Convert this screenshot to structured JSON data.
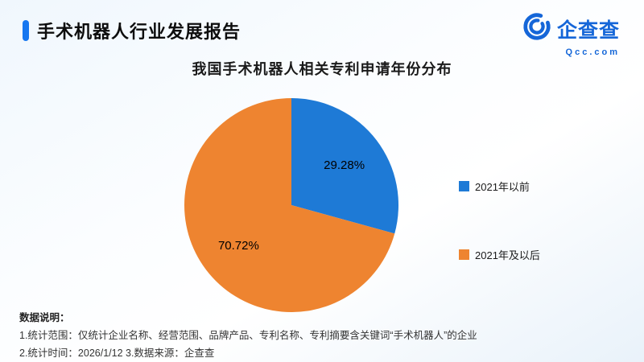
{
  "header": {
    "title": "手术机器人行业发展报告",
    "accent_color": "#1677f0"
  },
  "logo": {
    "name": "企查查",
    "domain": "Qcc.com",
    "color": "#1566d8"
  },
  "chart_data": {
    "type": "pie",
    "title": "我国手术机器人相关专利申请年份分布",
    "start_angle_deg": 0,
    "legend_position": "right",
    "slices": [
      {
        "label": "2021年以前",
        "value": 29.28,
        "display": "29.28%",
        "color": "#1e7ad6"
      },
      {
        "label": "2021年及以后",
        "value": 70.72,
        "display": "70.72%",
        "color": "#ee8430"
      }
    ]
  },
  "footer": {
    "heading": "数据说明：",
    "line1": "1.统计范围：仅统计企业名称、经营范围、品牌产品、专利名称、专利摘要含关键词“手术机器人”的企业",
    "line2": "2.统计时间：2026/1/12  3.数据来源：企查查"
  }
}
